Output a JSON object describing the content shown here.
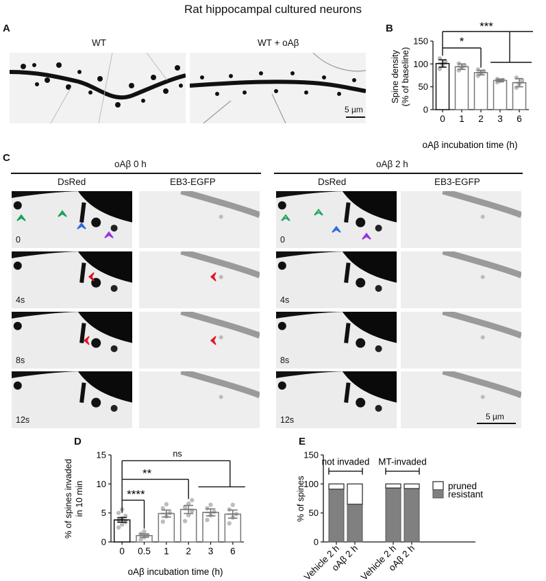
{
  "figure_title": "Rat hippocampal cultured neurons",
  "panel_labels": {
    "a": "A",
    "b": "B",
    "c": "C",
    "d": "D",
    "e": "E"
  },
  "panel_a": {
    "left_label": "WT",
    "right_label": "WT + oAβ",
    "scale_bar": "5 µm"
  },
  "panel_c": {
    "group_0h": "oAβ 0 h",
    "group_2h": "oAβ 2 h",
    "col_dsred": "DsRed",
    "col_eb3": "EB3-EGFP",
    "times": [
      "0",
      "4s",
      "8s",
      "12s"
    ],
    "scale_bar": "5 µm"
  },
  "chart_data": [
    {
      "panel": "B",
      "type": "bar",
      "categories": [
        "0",
        "1",
        "2",
        "3",
        "6"
      ],
      "values": [
        101,
        94,
        81,
        64,
        59
      ],
      "errors": [
        8,
        6,
        5,
        3,
        9
      ],
      "points": [
        [
          89,
          98,
          106,
          112
        ],
        [
          86,
          92,
          97,
          101
        ],
        [
          74,
          80,
          84,
          88
        ],
        [
          60,
          63,
          65,
          67
        ],
        [
          48,
          56,
          64,
          70
        ]
      ],
      "ylabel": "Spine density\n(% of baseline)",
      "xlabel": "oAβ incubation time (h)",
      "ylim": [
        0,
        150
      ],
      "yticks": [
        0,
        50,
        100,
        150
      ],
      "significance": [
        {
          "from": "0",
          "to": "2",
          "label": "*"
        },
        {
          "from": "0",
          "to": "3–6",
          "label": "***"
        }
      ]
    },
    {
      "panel": "D",
      "type": "bar",
      "categories": [
        "0",
        "0.5",
        "1",
        "2",
        "3",
        "6"
      ],
      "values": [
        3.8,
        1.1,
        4.9,
        5.6,
        5.1,
        4.8
      ],
      "errors": [
        0.4,
        0.3,
        0.6,
        0.7,
        0.6,
        0.7
      ],
      "points": [
        [
          2.5,
          3.0,
          3.4,
          3.8,
          4.1,
          4.5,
          5.0,
          5.6
        ],
        [
          0.4,
          0.8,
          1.1,
          1.4,
          1.8
        ],
        [
          3.5,
          4.4,
          5.0,
          5.8,
          6.5
        ],
        [
          3.6,
          4.6,
          5.3,
          6.0,
          6.6,
          7.2
        ],
        [
          3.8,
          4.6,
          5.2,
          5.8,
          6.4
        ],
        [
          3.2,
          4.2,
          4.8,
          5.6,
          6.4
        ]
      ],
      "ylabel": "% of spines invaded\nin 10 min",
      "xlabel": "oAβ incubation time (h)",
      "ylim": [
        0,
        15
      ],
      "yticks": [
        0,
        5,
        10,
        15
      ],
      "significance": [
        {
          "from": "0",
          "to": "0.5",
          "label": "****"
        },
        {
          "from": "0",
          "to": "2",
          "label": "**"
        },
        {
          "from": "0",
          "to": "3–6",
          "label": "ns"
        }
      ]
    },
    {
      "panel": "E",
      "type": "bar",
      "stacked": true,
      "categories": [
        "Vehicle 2 h",
        "oAβ 2 h",
        "Vehicle 2 h",
        "oAβ 2 h"
      ],
      "series": [
        {
          "name": "resistant",
          "values": [
            91,
            65,
            93,
            92
          ],
          "color": "#808080"
        },
        {
          "name": "pruned",
          "values": [
            9,
            35,
            7,
            8
          ],
          "color": "#ffffff"
        }
      ],
      "groups": [
        "not invaded",
        "MT-invaded"
      ],
      "ylabel": "% of spines",
      "ylim": [
        0,
        150
      ],
      "yticks": [
        0,
        50,
        100,
        150
      ],
      "legend": "right"
    }
  ]
}
